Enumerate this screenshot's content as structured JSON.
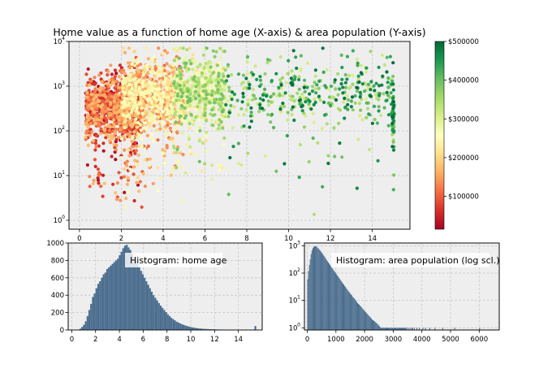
{
  "colors": {
    "panel_bg": "#eeeeee",
    "hist_bar": "#4c6e8f",
    "colormap": [
      "#a50026",
      "#d73027",
      "#f46d43",
      "#fdae61",
      "#fee08b",
      "#ffffbf",
      "#d9ef8b",
      "#a6d96a",
      "#66bd63",
      "#1a9850",
      "#006837"
    ]
  },
  "chart_data": [
    {
      "type": "scatter",
      "title": "Home value as a function of home age (X-axis) & area population (Y-axis)",
      "xlabel": "",
      "ylabel": "",
      "xlim": [
        -0.5,
        15.8
      ],
      "ylim_log10": [
        -0.2,
        4
      ],
      "y_scale": "log",
      "grid": true,
      "x_ticks": [
        "0",
        "2",
        "4",
        "6",
        "8",
        "10",
        "12",
        "14"
      ],
      "x_tick_values": [
        0,
        2,
        4,
        6,
        8,
        10,
        12,
        14
      ],
      "y_ticks": [
        "10",
        "10",
        "10",
        "10",
        "10"
      ],
      "y_tick_exponents": [
        "0",
        "1",
        "2",
        "3",
        "4"
      ],
      "y_tick_log10": [
        0,
        1,
        2,
        3,
        4
      ],
      "colorbar": {
        "range": [
          15000,
          500000
        ],
        "ticks": [
          "$100000",
          "$200000",
          "$300000",
          "$400000",
          "$500000"
        ],
        "tick_values": [
          100000,
          200000,
          300000,
          400000,
          500000
        ]
      },
      "point_clusters": [
        {
          "x_range": [
            0.3,
            3.0
          ],
          "log_pop_center": 2.5,
          "value_range": [
            15000,
            180000
          ],
          "approx_points": 900
        },
        {
          "x_range": [
            2.0,
            5.0
          ],
          "log_pop_center": 2.8,
          "value_range": [
            100000,
            280000
          ],
          "approx_points": 900
        },
        {
          "x_range": [
            4.5,
            7.0
          ],
          "log_pop_center": 2.9,
          "value_range": [
            200000,
            400000
          ],
          "approx_points": 600
        },
        {
          "x_range": [
            7.0,
            15.0
          ],
          "log_pop_center": 2.8,
          "value_range": [
            300000,
            500000
          ],
          "approx_points": 400
        },
        {
          "x_range": [
            14.95,
            15.05
          ],
          "log_pop_center": 2.4,
          "value_range": [
            350000,
            500000
          ],
          "approx_points": 60
        }
      ]
    },
    {
      "type": "bar",
      "title": "Histogram: home age",
      "xlabel": "",
      "ylabel": "",
      "xlim": [
        -0.3,
        16.0
      ],
      "ylim": [
        0,
        1000
      ],
      "grid": true,
      "x_ticks": [
        "0",
        "2",
        "4",
        "6",
        "8",
        "10",
        "12",
        "14"
      ],
      "x_tick_values": [
        0,
        2,
        4,
        6,
        8,
        10,
        12,
        14
      ],
      "y_ticks": [
        "0",
        "200",
        "400",
        "600",
        "800",
        "1000"
      ],
      "y_tick_values": [
        0,
        200,
        400,
        600,
        800,
        1000
      ],
      "bin_width": 0.15,
      "bins_start": 0.5,
      "values": [
        5,
        15,
        35,
        60,
        100,
        160,
        230,
        300,
        380,
        420,
        480,
        530,
        560,
        600,
        640,
        660,
        700,
        720,
        740,
        760,
        780,
        800,
        820,
        860,
        900,
        940,
        970,
        980,
        950,
        920,
        880,
        840,
        800,
        760,
        720,
        680,
        640,
        600,
        560,
        520,
        480,
        440,
        400,
        370,
        340,
        310,
        280,
        255,
        230,
        205,
        180,
        160,
        140,
        125,
        110,
        95,
        85,
        75,
        65,
        58,
        50,
        44,
        38,
        33,
        29,
        25,
        22,
        19,
        17,
        15,
        13,
        12,
        11,
        10,
        9,
        8,
        7,
        7,
        6,
        6,
        5,
        5,
        4,
        4,
        4,
        3,
        3,
        3,
        2,
        2,
        2,
        2,
        1,
        1,
        1,
        1,
        1,
        0,
        0,
        45
      ]
    },
    {
      "type": "bar",
      "title": "Histogram: area population (log scl.)",
      "xlabel": "",
      "ylabel": "",
      "xlim": [
        -100,
        6700
      ],
      "ylim_log10": [
        -0.08,
        3.1
      ],
      "y_scale": "log",
      "grid": true,
      "x_ticks": [
        "0",
        "1000",
        "2000",
        "3000",
        "4000",
        "5000",
        "6000"
      ],
      "x_tick_values": [
        0,
        1000,
        2000,
        3000,
        4000,
        5000,
        6000
      ],
      "y_ticks": [
        "10",
        "10",
        "10",
        "10"
      ],
      "y_tick_exponents": [
        "0",
        "1",
        "2",
        "3"
      ],
      "y_tick_log10": [
        0,
        1,
        2,
        3
      ],
      "bin_width": 30,
      "bins_start": 0,
      "values": [
        60,
        120,
        200,
        320,
        500,
        680,
        820,
        900,
        950,
        970,
        940,
        880,
        820,
        760,
        700,
        640,
        580,
        520,
        470,
        420,
        380,
        340,
        300,
        270,
        245,
        220,
        200,
        180,
        160,
        145,
        130,
        118,
        106,
        96,
        86,
        78,
        70,
        63,
        57,
        51,
        46,
        42,
        38,
        34,
        31,
        28,
        25,
        23,
        21,
        19,
        17,
        16,
        14,
        13,
        12,
        11,
        10,
        9,
        8,
        7.5,
        7,
        6.5,
        6,
        5.5,
        5,
        4.6,
        4.2,
        3.9,
        3.6,
        3.3,
        3,
        2.8,
        2.6,
        2.4,
        2.2,
        2,
        1.9,
        1.8,
        1.7,
        1.6,
        1.5,
        1.4,
        1.3,
        1.2,
        1.1,
        1,
        1,
        1,
        1,
        1,
        1,
        1,
        1,
        1,
        1,
        1,
        1,
        1,
        1,
        1,
        1,
        1,
        1,
        1,
        1,
        1,
        1,
        1,
        1,
        1,
        1,
        1,
        1,
        1,
        1,
        1,
        0,
        1,
        0,
        1,
        0,
        1,
        1,
        0,
        1,
        0,
        0,
        1,
        0,
        0,
        1,
        0,
        0,
        0,
        1,
        0,
        0,
        1,
        0,
        0,
        0,
        0,
        1,
        0,
        0,
        0,
        0,
        0,
        1,
        0,
        0,
        0,
        0,
        0,
        0,
        0,
        0,
        1,
        0,
        0,
        0,
        0,
        0,
        0,
        0,
        0,
        0,
        0,
        0,
        0,
        0,
        1,
        0,
        0,
        0,
        0,
        0,
        0,
        0,
        0,
        0,
        0,
        0,
        0,
        0,
        0,
        0,
        0,
        0,
        0,
        0,
        0,
        0,
        0,
        0,
        0,
        0,
        0,
        0,
        0,
        1
      ]
    }
  ]
}
